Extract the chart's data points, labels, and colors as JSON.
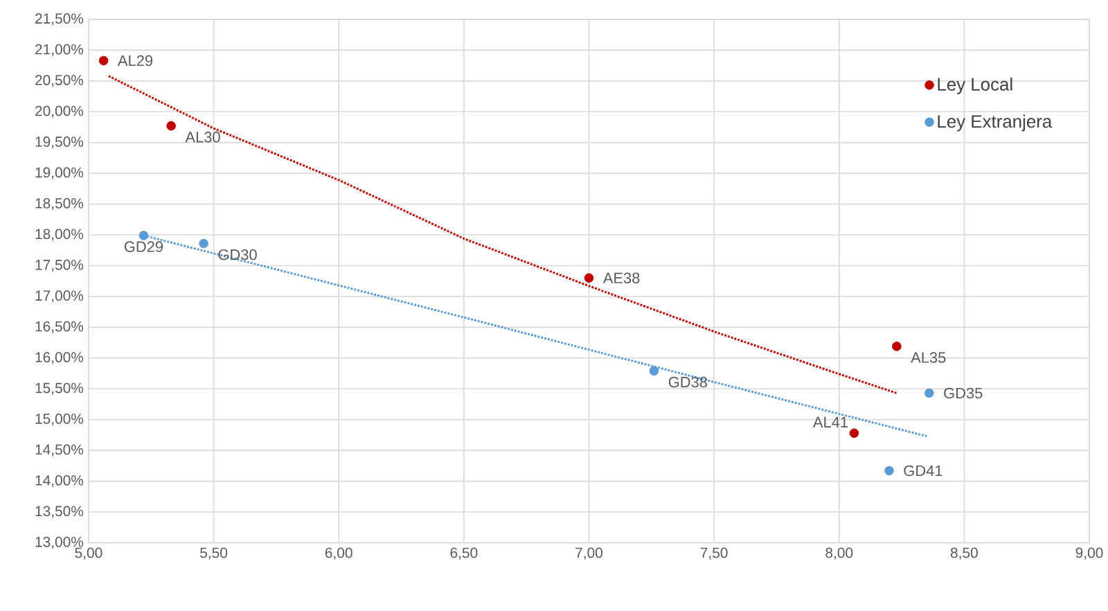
{
  "chart_data": {
    "type": "scatter",
    "xlim": [
      5,
      9
    ],
    "ylim": [
      13,
      21.5
    ],
    "xticks": [
      {
        "value": 5,
        "label": "5,00"
      },
      {
        "value": 5.5,
        "label": "5,50"
      },
      {
        "value": 6,
        "label": "6,00"
      },
      {
        "value": 6.5,
        "label": "6,50"
      },
      {
        "value": 7,
        "label": "7,00"
      },
      {
        "value": 7.5,
        "label": "7,50"
      },
      {
        "value": 8,
        "label": "8,00"
      },
      {
        "value": 8.5,
        "label": "8,50"
      },
      {
        "value": 9,
        "label": "9,00"
      }
    ],
    "yticks": [
      {
        "value": 13,
        "label": "13,00%"
      },
      {
        "value": 13.5,
        "label": "13,50%"
      },
      {
        "value": 14,
        "label": "14,00%"
      },
      {
        "value": 14.5,
        "label": "14,50%"
      },
      {
        "value": 15,
        "label": "15,00%"
      },
      {
        "value": 15.5,
        "label": "15,50%"
      },
      {
        "value": 16,
        "label": "16,00%"
      },
      {
        "value": 16.5,
        "label": "16,50%"
      },
      {
        "value": 17,
        "label": "17,00%"
      },
      {
        "value": 17.5,
        "label": "17,50%"
      },
      {
        "value": 18,
        "label": "18,00%"
      },
      {
        "value": 18.5,
        "label": "18,50%"
      },
      {
        "value": 19,
        "label": "19,00%"
      },
      {
        "value": 19.5,
        "label": "19,50%"
      },
      {
        "value": 20,
        "label": "20,00%"
      },
      {
        "value": 20.5,
        "label": "20,50%"
      },
      {
        "value": 21,
        "label": "21,00%"
      },
      {
        "value": 21.5,
        "label": "21,50%"
      }
    ],
    "grid": true,
    "legend": "top right",
    "series": [
      {
        "name": "Ley Local",
        "marker": "circle",
        "color": "#c00000",
        "x": [
          5.06,
          5.33,
          7.0,
          8.23,
          8.06
        ],
        "values": [
          20.83,
          19.77,
          17.3,
          16.19,
          14.78
        ]
      },
      {
        "name": "Ley Extranjera",
        "marker": "circle",
        "color": "#5b9bd5",
        "x": [
          5.22,
          5.46,
          7.26,
          8.36,
          8.2
        ],
        "values": [
          17.99,
          17.86,
          15.79,
          15.43,
          14.17
        ]
      },
      {
        "type": "line",
        "marker": "none",
        "line_style": "dotted",
        "color": "#c00000",
        "x": [
          5.08,
          5.5,
          6.0,
          6.5,
          7.0,
          7.5,
          8.0,
          8.23
        ],
        "values": [
          20.58,
          19.73,
          18.89,
          17.94,
          17.17,
          16.43,
          15.74,
          15.43
        ]
      },
      {
        "type": "line",
        "marker": "none",
        "line_style": "dotted",
        "color": "#5b9bd5",
        "x": [
          5.22,
          6.5,
          7.5,
          8.35
        ],
        "values": [
          17.99,
          16.66,
          15.61,
          14.73
        ]
      }
    ],
    "annotations": [
      {
        "text": "AL29",
        "x": 5.06,
        "y": 20.83
      },
      {
        "text": "AL30",
        "x": 5.33,
        "y": 19.77
      },
      {
        "text": "AE38",
        "x": 7.0,
        "y": 17.3
      },
      {
        "text": "AL35",
        "x": 8.23,
        "y": 16.19
      },
      {
        "text": "AL41",
        "x": 8.06,
        "y": 14.78
      },
      {
        "text": "GD29",
        "x": 5.22,
        "y": 17.99
      },
      {
        "text": "GD30",
        "x": 5.46,
        "y": 17.86
      },
      {
        "text": "GD38",
        "x": 7.26,
        "y": 15.79
      },
      {
        "text": "GD35",
        "x": 8.36,
        "y": 15.43
      },
      {
        "text": "GD41",
        "x": 8.2,
        "y": 14.17
      }
    ]
  }
}
